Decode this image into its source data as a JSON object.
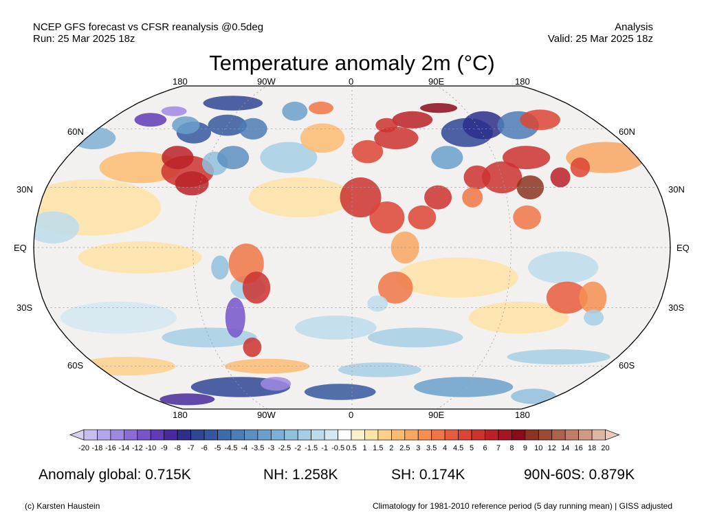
{
  "header": {
    "left_line1": "NCEP GFS forecast vs CFSR reanalysis @0.5deg",
    "left_line2": "Run: 25 Mar 2025 18z",
    "right_line1": "Analysis",
    "right_line2": "Valid: 25 Mar 2025 18z"
  },
  "title": "Temperature anomaly 2m (°C)",
  "map": {
    "projection": "robinson",
    "lon_labels": [
      "180",
      "90W",
      "0",
      "90E",
      "180"
    ],
    "lat_labels": [
      "60N",
      "30N",
      "EQ",
      "30S",
      "60S"
    ],
    "ocean_bg": "#f3f1ef",
    "gridline_color": "#9a9a9a"
  },
  "colorbar": {
    "ticks": [
      "-20",
      "-18",
      "-16",
      "-14",
      "-12",
      "-10",
      "-9",
      "-8",
      "-7",
      "-6",
      "-5",
      "-4.5",
      "-4",
      "-3.5",
      "-3",
      "-2.5",
      "-2",
      "-1.5",
      "-1",
      "-0.5",
      "0.5",
      "1",
      "1.5",
      "2",
      "2.5",
      "3",
      "3.5",
      "4",
      "4.5",
      "5",
      "6",
      "7",
      "8",
      "9",
      "10",
      "12",
      "14",
      "16",
      "18",
      "20"
    ],
    "colors": [
      "#c8bff0",
      "#b5a6ec",
      "#9f88e2",
      "#8a6cd7",
      "#7655c9",
      "#5f3cb6",
      "#482a9c",
      "#2c2f8c",
      "#2e4795",
      "#34589f",
      "#3d6aaa",
      "#4b7db6",
      "#5a8fc1",
      "#6aa0cb",
      "#7cb1d5",
      "#8fc0dd",
      "#a6cfe5",
      "#bcdcec",
      "#d3e8f2",
      "#ffffff",
      "#fdf0c8",
      "#fde3a6",
      "#fcd089",
      "#fbbc72",
      "#f8a660",
      "#f48f52",
      "#ee7546",
      "#e65c3d",
      "#dc4535",
      "#cd322f",
      "#ba2228",
      "#a51622",
      "#8a0c1b",
      "#8c3420",
      "#9c4a34",
      "#ad6249",
      "#be7d65",
      "#cf9a84",
      "#dfb5a4"
    ]
  },
  "stats": {
    "global": "Anomaly global: 0.715K",
    "nh": "NH: 1.258K",
    "sh": "SH: 0.174K",
    "arctic": "90N-60S: 0.879K"
  },
  "footer": {
    "left": "(c) Karsten Haustein",
    "right": "Climatology for 1981-2010 reference period (5 day running mean) | GISS adjusted"
  }
}
